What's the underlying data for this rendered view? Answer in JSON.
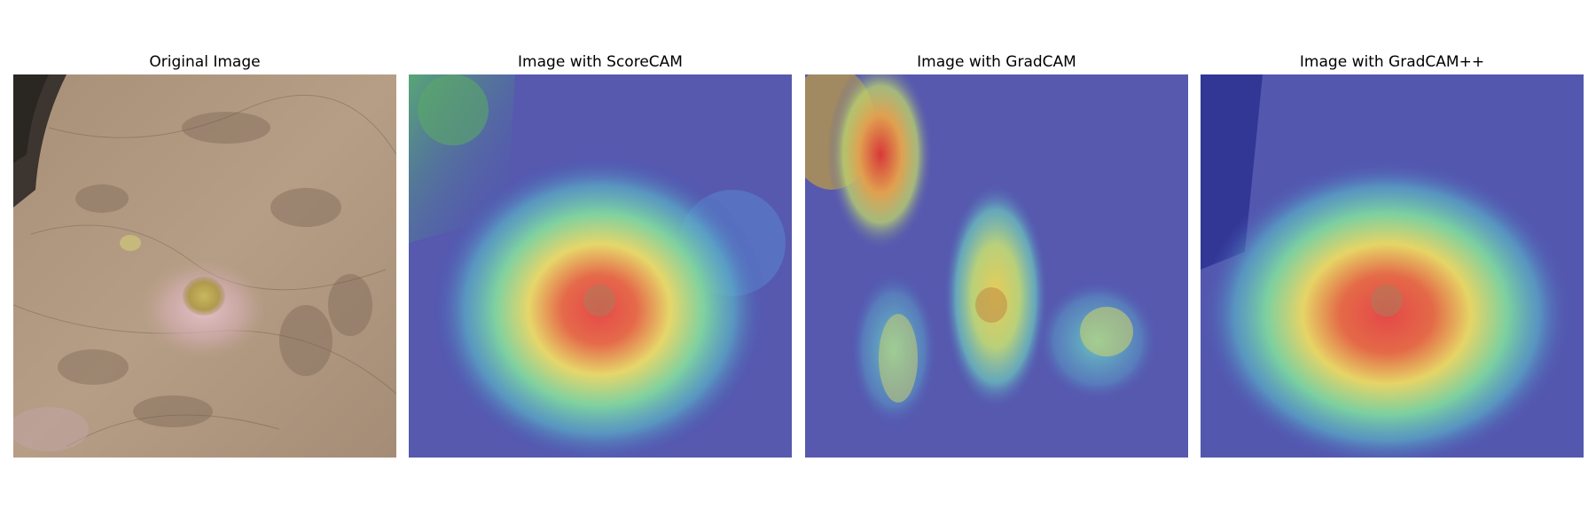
{
  "figure": {
    "panels": [
      {
        "title": "Original Image",
        "overlay": "none"
      },
      {
        "title": "Image with ScoreCAM",
        "overlay": "scorecam"
      },
      {
        "title": "Image with GradCAM",
        "overlay": "gradcam"
      },
      {
        "title": "Image with GradCAM++",
        "overlay": "gradcampp"
      }
    ]
  },
  "colors": {
    "skin_base": "#b59a80",
    "skin_dark": "#6e5a4a",
    "lesion_pink": "#d9b3bf",
    "lesion_yellow": "#c9b45a",
    "cam_low": "#4a4fb8",
    "cam_mid_cyan": "#59c8c0",
    "cam_mid_yellow": "#e8e070",
    "cam_high": "#e04040"
  }
}
